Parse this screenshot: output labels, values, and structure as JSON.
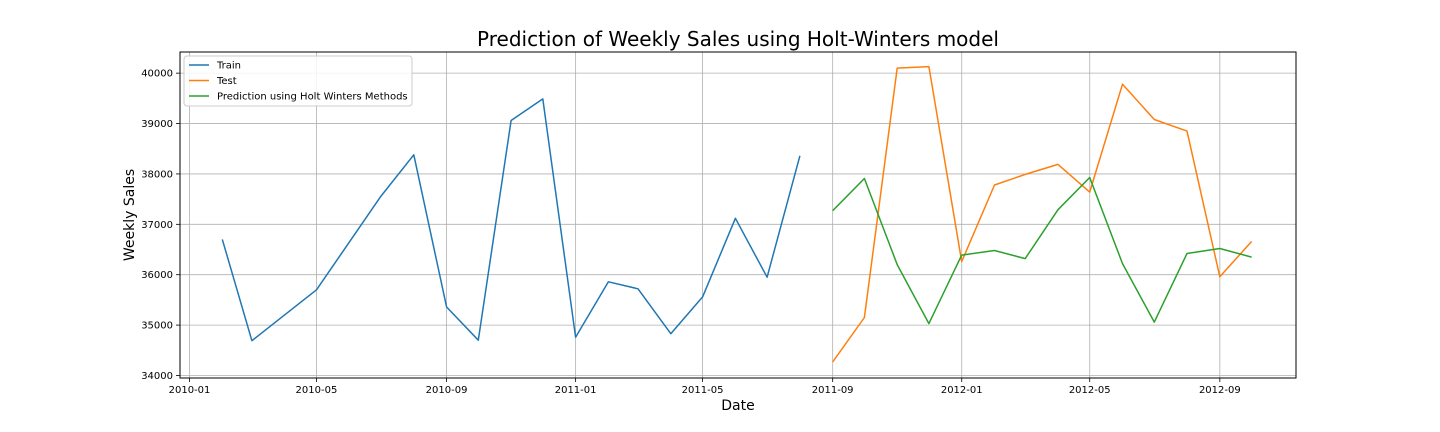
{
  "chart_data": {
    "type": "line",
    "title": "Prediction of Weekly Sales using Holt-Winters model",
    "xlabel": "Date",
    "ylabel": "Weekly Sales",
    "xlim": [
      "2009-12-23",
      "2012-11-12"
    ],
    "ylim": [
      33950,
      40420
    ],
    "x_ticks": [
      "2010-01",
      "2010-05",
      "2010-09",
      "2011-01",
      "2011-05",
      "2011-09",
      "2012-01",
      "2012-05",
      "2012-09"
    ],
    "y_ticks": [
      34000,
      35000,
      36000,
      37000,
      38000,
      39000,
      40000
    ],
    "grid": true,
    "legend_position": "top-left",
    "series": [
      {
        "name": "Train",
        "color": "#1f77b4",
        "points": [
          {
            "x": "2010-02-01",
            "y": 36700
          },
          {
            "x": "2010-03-01",
            "y": 34690
          },
          {
            "x": "2010-05-01",
            "y": 35700
          },
          {
            "x": "2010-07-01",
            "y": 37560
          },
          {
            "x": "2010-08-01",
            "y": 38380
          },
          {
            "x": "2010-09-01",
            "y": 35360
          },
          {
            "x": "2010-10-01",
            "y": 34700
          },
          {
            "x": "2010-11-01",
            "y": 39060
          },
          {
            "x": "2010-12-01",
            "y": 39490
          },
          {
            "x": "2011-01-01",
            "y": 34760
          },
          {
            "x": "2011-02-01",
            "y": 35860
          },
          {
            "x": "2011-03-01",
            "y": 35720
          },
          {
            "x": "2011-04-01",
            "y": 34830
          },
          {
            "x": "2011-05-01",
            "y": 35560
          },
          {
            "x": "2011-06-01",
            "y": 37120
          },
          {
            "x": "2011-07-01",
            "y": 35950
          },
          {
            "x": "2011-08-01",
            "y": 38360
          }
        ]
      },
      {
        "name": "Test",
        "color": "#ff7f0e",
        "points": [
          {
            "x": "2011-09-01",
            "y": 34270
          },
          {
            "x": "2011-10-01",
            "y": 35150
          },
          {
            "x": "2011-11-01",
            "y": 40100
          },
          {
            "x": "2011-12-01",
            "y": 40130
          },
          {
            "x": "2012-01-01",
            "y": 36260
          },
          {
            "x": "2012-02-01",
            "y": 37780
          },
          {
            "x": "2012-03-01",
            "y": 37990
          },
          {
            "x": "2012-04-01",
            "y": 38190
          },
          {
            "x": "2012-05-01",
            "y": 37640
          },
          {
            "x": "2012-06-01",
            "y": 39780
          },
          {
            "x": "2012-07-01",
            "y": 39080
          },
          {
            "x": "2012-08-01",
            "y": 38850
          },
          {
            "x": "2012-09-01",
            "y": 35960
          },
          {
            "x": "2012-10-01",
            "y": 36660
          }
        ]
      },
      {
        "name": "Prediction using Holt Winters Methods",
        "color": "#2ca02c",
        "points": [
          {
            "x": "2011-09-01",
            "y": 37270
          },
          {
            "x": "2011-10-01",
            "y": 37910
          },
          {
            "x": "2011-11-01",
            "y": 36200
          },
          {
            "x": "2011-12-01",
            "y": 35030
          },
          {
            "x": "2012-01-01",
            "y": 36390
          },
          {
            "x": "2012-02-01",
            "y": 36480
          },
          {
            "x": "2012-03-01",
            "y": 36320
          },
          {
            "x": "2012-04-01",
            "y": 37290
          },
          {
            "x": "2012-05-01",
            "y": 37930
          },
          {
            "x": "2012-06-01",
            "y": 36220
          },
          {
            "x": "2012-07-01",
            "y": 35060
          },
          {
            "x": "2012-08-01",
            "y": 36420
          },
          {
            "x": "2012-09-01",
            "y": 36520
          },
          {
            "x": "2012-10-01",
            "y": 36350
          }
        ]
      }
    ]
  }
}
